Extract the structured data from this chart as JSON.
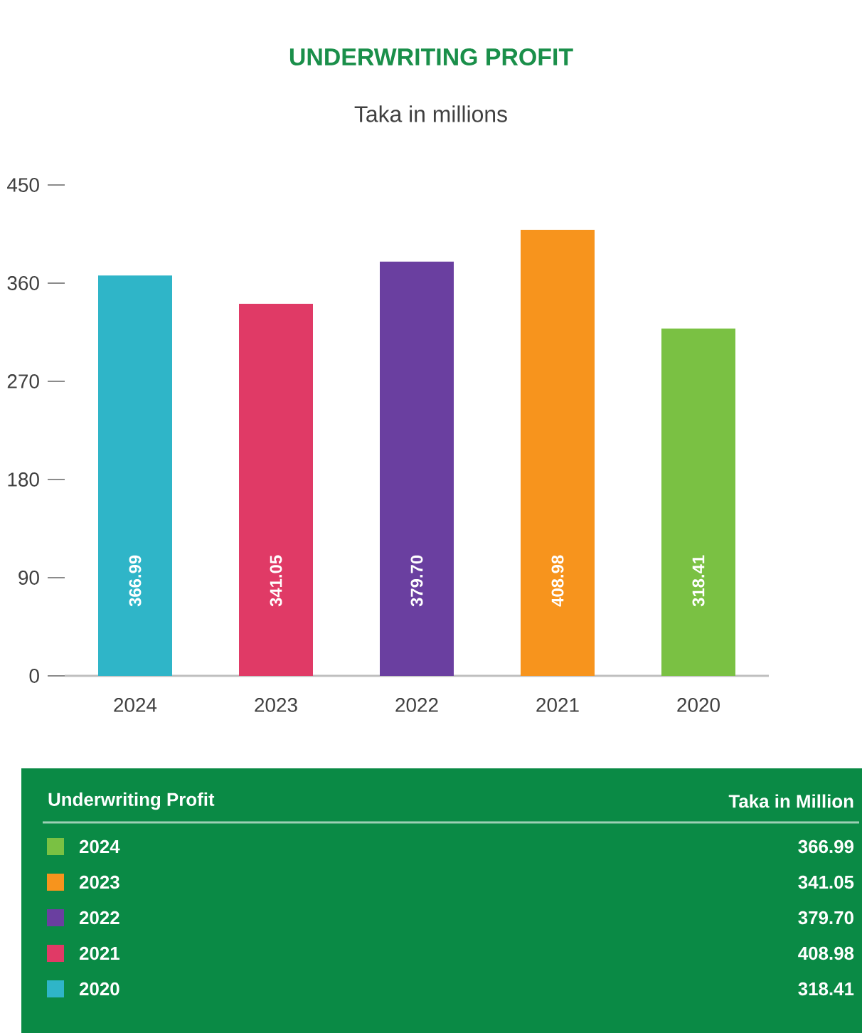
{
  "chart_data": {
    "type": "bar",
    "title": "UNDERWRITING PROFIT",
    "subtitle": "Taka in millions",
    "categories": [
      "2024",
      "2023",
      "2022",
      "2021",
      "2020"
    ],
    "values": [
      366.99,
      341.05,
      379.7,
      408.98,
      318.41
    ],
    "value_labels": [
      "366.99",
      "341.05",
      "379.70",
      "408.98",
      "318.41"
    ],
    "colors": [
      "#2fb5c8",
      "#e03a66",
      "#6a3fa0",
      "#f7941d",
      "#7ac143"
    ],
    "ylim": [
      0,
      450
    ],
    "yticks": [
      0,
      90,
      180,
      270,
      360,
      450
    ],
    "annotations": [
      "Underwriting Profit",
      "Taka in Million"
    ]
  }
}
